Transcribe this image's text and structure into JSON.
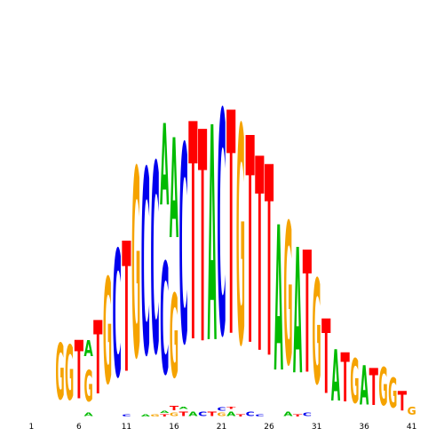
{
  "chart_data": {
    "type": "sequence-logo",
    "positions": [
      1,
      2,
      3,
      4,
      5,
      6,
      7,
      8,
      9,
      10,
      11,
      12,
      13,
      14,
      15,
      16,
      17,
      18,
      19,
      20,
      21,
      22,
      23,
      24,
      25,
      26,
      27,
      28,
      29,
      30,
      31,
      32,
      33,
      34,
      35,
      36,
      37,
      38,
      39,
      40,
      41
    ],
    "tick_labels": [
      "1",
      "6",
      "11",
      "16",
      "21",
      "26",
      "31",
      "36",
      "41"
    ],
    "tick_positions": [
      1,
      6,
      11,
      16,
      21,
      26,
      31,
      36,
      41
    ],
    "ylim": [
      0,
      2
    ],
    "grid": false,
    "legend": "none",
    "colors": {
      "A": "#00bb00",
      "C": "#0000ee",
      "G": "#f5a300",
      "T": "#ff0000"
    },
    "columns": [
      [],
      [],
      [],
      [
        {
          "base": "G",
          "height": 0.48
        }
      ],
      [
        {
          "base": "G",
          "height": 0.47
        }
      ],
      [
        {
          "base": "T",
          "height": 0.5
        }
      ],
      [
        {
          "base": "A",
          "height": 0.03
        },
        {
          "base": "G",
          "height": 0.27
        },
        {
          "base": "A",
          "height": 0.14
        }
      ],
      [
        {
          "base": "T",
          "height": 0.63
        }
      ],
      [
        {
          "base": "G",
          "height": 0.91
        }
      ],
      [
        {
          "base": "C",
          "height": 1.09
        }
      ],
      [
        {
          "base": "C",
          "height": 0.02
        },
        {
          "base": "T",
          "height": 1.12
        }
      ],
      [
        {
          "base": "G",
          "height": 1.62
        }
      ],
      [
        {
          "base": "A",
          "height": 0.02
        },
        {
          "base": "C",
          "height": 1.59
        }
      ],
      [
        {
          "base": "G",
          "height": 0.02
        },
        {
          "base": "C",
          "height": 1.63
        }
      ],
      [
        {
          "base": "T",
          "height": 0.02
        },
        {
          "base": "A",
          "height": 0.02
        },
        {
          "base": "C",
          "height": 0.96
        },
        {
          "base": "A",
          "height": 0.7
        }
      ],
      [
        {
          "base": "G",
          "height": 0.03
        },
        {
          "base": "T",
          "height": 0.04
        },
        {
          "base": "G",
          "height": 0.72
        },
        {
          "base": "A",
          "height": 0.86
        }
      ],
      [
        {
          "base": "T",
          "height": 0.04
        },
        {
          "base": "A",
          "height": 0.02
        },
        {
          "base": "C",
          "height": 1.7
        }
      ],
      [
        {
          "base": "A",
          "height": 0.04
        },
        {
          "base": "T",
          "height": 1.87
        }
      ],
      [
        {
          "base": "C",
          "height": 0.04
        },
        {
          "base": "T",
          "height": 1.82
        }
      ],
      [
        {
          "base": "T",
          "height": 0.04
        },
        {
          "base": "A",
          "height": 1.85
        }
      ],
      [
        {
          "base": "G",
          "height": 0.03
        },
        {
          "base": "C",
          "height": 0.03
        },
        {
          "base": "C",
          "height": 1.92
        }
      ],
      [
        {
          "base": "A",
          "height": 0.04
        },
        {
          "base": "T",
          "height": 0.02
        },
        {
          "base": "T",
          "height": 1.92
        }
      ],
      [
        {
          "base": "T",
          "height": 0.02
        },
        {
          "base": "G",
          "height": 1.87
        }
      ],
      [
        {
          "base": "C",
          "height": 0.04
        },
        {
          "base": "T",
          "height": 1.78
        }
      ],
      [
        {
          "base": "C",
          "height": 0.02
        },
        {
          "base": "T",
          "height": 1.67
        }
      ],
      [
        {
          "base": "T",
          "height": 1.64
        }
      ],
      [
        {
          "base": "A",
          "height": 1.25
        }
      ],
      [
        {
          "base": "A",
          "height": 0.04
        },
        {
          "base": "G",
          "height": 1.22
        }
      ],
      [
        {
          "base": "T",
          "height": 0.02
        },
        {
          "base": "A",
          "height": 1.08
        }
      ],
      [
        {
          "base": "C",
          "height": 0.03
        },
        {
          "base": "T",
          "height": 1.05
        }
      ],
      [
        {
          "base": "G",
          "height": 0.9
        }
      ],
      [
        {
          "base": "T",
          "height": 0.64
        }
      ],
      [
        {
          "base": "A",
          "height": 0.44
        }
      ],
      [
        {
          "base": "T",
          "height": 0.42
        }
      ],
      [
        {
          "base": "G",
          "height": 0.38
        }
      ],
      [
        {
          "base": "A",
          "height": 0.34
        }
      ],
      [
        {
          "base": "T",
          "height": 0.32
        }
      ],
      [
        {
          "base": "G",
          "height": 0.33
        }
      ],
      [
        {
          "base": "G",
          "height": 0.26
        }
      ],
      [
        {
          "base": "T",
          "height": 0.17
        }
      ],
      [
        {
          "base": "G",
          "height": 0.07
        }
      ]
    ]
  }
}
